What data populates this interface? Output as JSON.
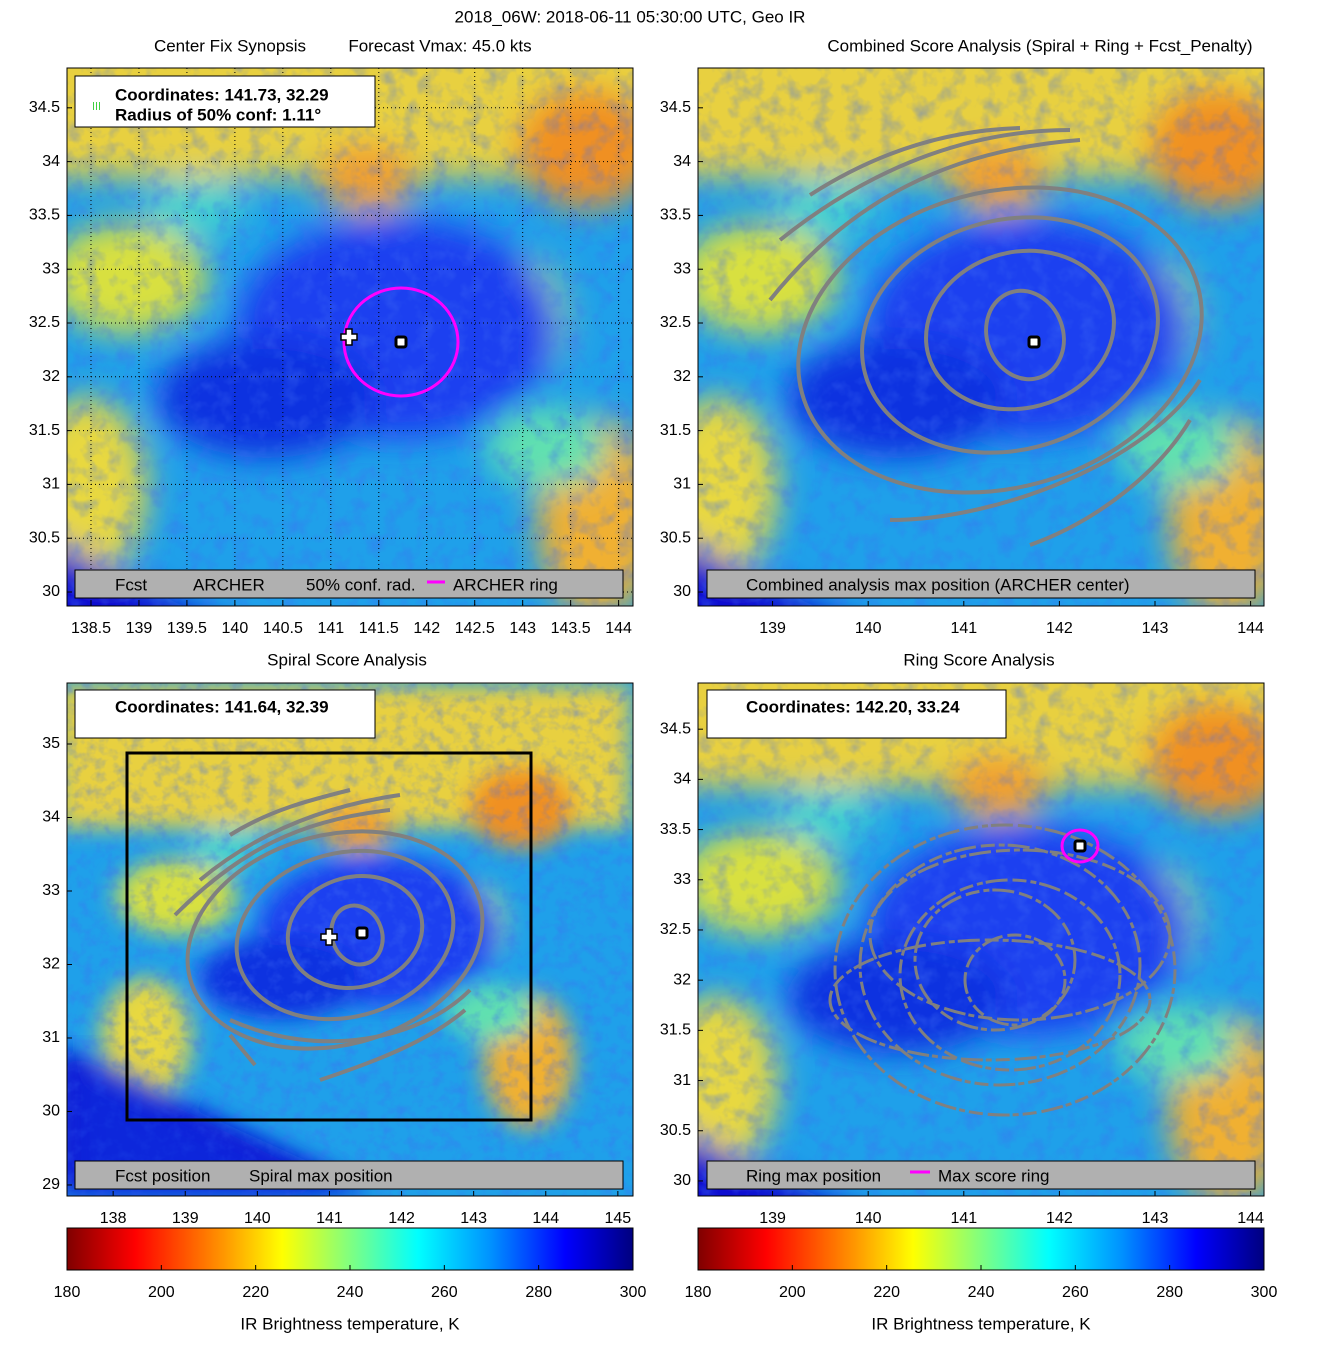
{
  "title": "2018_06W: 2018-06-11 05:30:00 UTC, Geo IR",
  "panels": [
    {
      "title": "Center Fix Synopsis",
      "subtitle": "Forecast Vmax: 45.0 kts",
      "xlim": [
        138.25,
        144.15
      ],
      "ylim": [
        29.87,
        34.87
      ],
      "xticks": [
        138.5,
        139,
        139.5,
        140,
        140.5,
        141,
        141.5,
        142,
        142.5,
        143,
        143.5,
        144
      ],
      "yticks": [
        30,
        30.5,
        31,
        31.5,
        32,
        32.5,
        33,
        33.5,
        34,
        34.5
      ],
      "grid": true,
      "info": [
        "Coordinates: 141.73, 32.29",
        "Radius of 50% conf: 1.11°"
      ],
      "legend": [
        "Fcst",
        "ARCHER",
        "50% conf. rad.",
        "ARCHER ring"
      ]
    },
    {
      "title": "Combined Score Analysis (Spiral + Ring + Fcst_Penalty)",
      "xlim": [
        138.22,
        144.14
      ],
      "ylim": [
        29.87,
        34.87
      ],
      "xticks": [
        139,
        140,
        141,
        142,
        143,
        144
      ],
      "yticks": [
        30,
        30.5,
        31,
        31.5,
        32,
        32.5,
        33,
        33.5,
        34,
        34.5
      ],
      "grid": false,
      "legend": [
        "Combined analysis max position (ARCHER center)"
      ]
    },
    {
      "title": "Spiral Score Analysis",
      "xlim": [
        137.36,
        145.21
      ],
      "ylim": [
        28.85,
        35.83
      ],
      "xticks": [
        138,
        139,
        140,
        141,
        142,
        143,
        144,
        145
      ],
      "yticks": [
        29,
        30,
        31,
        32,
        33,
        34,
        35
      ],
      "grid": false,
      "info": [
        "Coordinates: 141.64, 32.39"
      ],
      "legend": [
        "Fcst position",
        "Spiral max position"
      ]
    },
    {
      "title": "Ring Score Analysis",
      "xlim": [
        138.22,
        144.14
      ],
      "ylim": [
        29.85,
        34.96
      ],
      "xticks": [
        139,
        140,
        141,
        142,
        143,
        144
      ],
      "yticks": [
        30,
        30.5,
        31,
        31.5,
        32,
        32.5,
        33,
        33.5,
        34,
        34.5
      ],
      "grid": false,
      "info": [
        "Coordinates: 142.20, 33.24"
      ],
      "legend": [
        "Ring max position",
        "Max score ring"
      ]
    }
  ],
  "colorbars": [
    {
      "xlim": [
        180,
        300
      ],
      "xticks": [
        180,
        200,
        220,
        240,
        260,
        280,
        300
      ],
      "label": "IR Brightness temperature, K"
    },
    {
      "xlim": [
        180,
        300
      ],
      "xticks": [
        180,
        200,
        220,
        240,
        260,
        280,
        300
      ],
      "label": "IR Brightness temperature, K"
    }
  ]
}
